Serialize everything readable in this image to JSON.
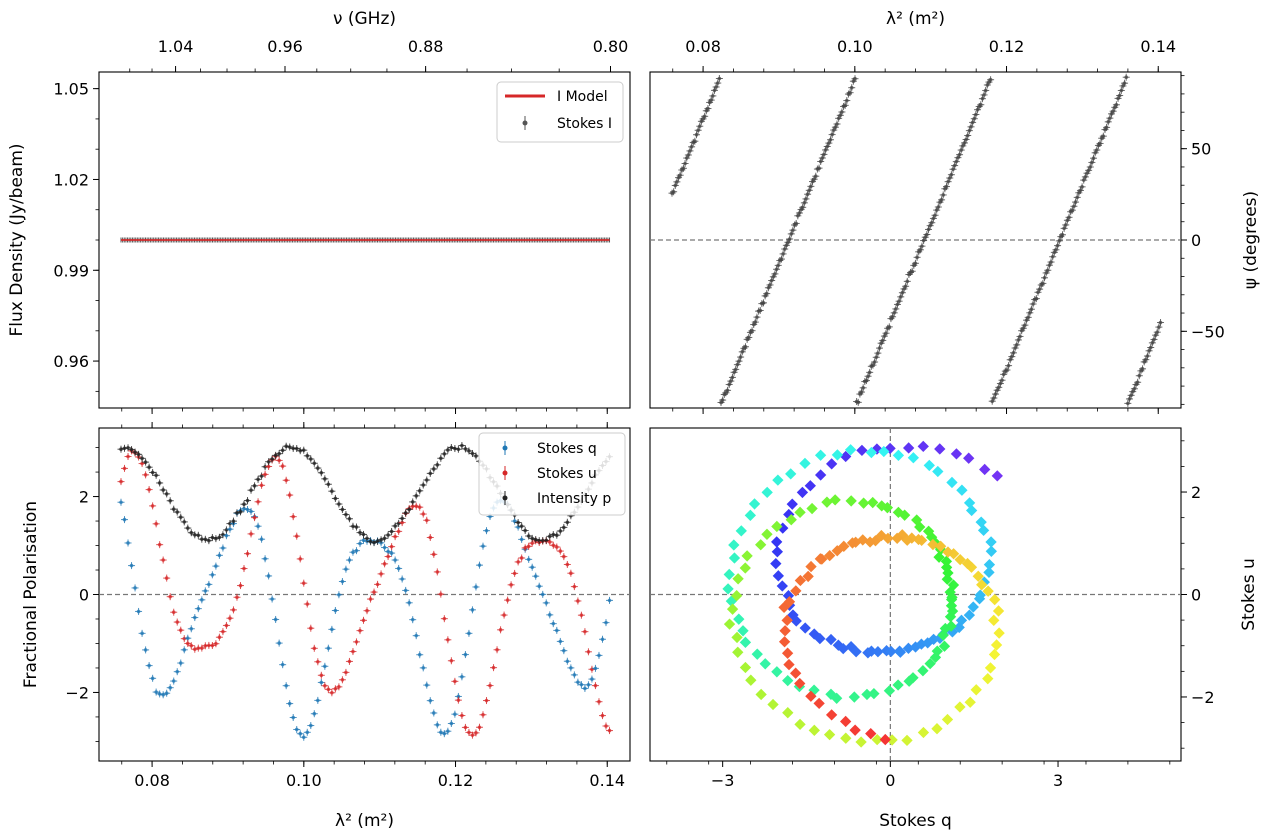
{
  "chart_data": [
    {
      "id": "stokes-i",
      "type": "scatter",
      "xlabel": "λ² (m²)",
      "ylabel": "Flux Density (Jy/beam)",
      "top_xlabel": "ν (GHz)",
      "xlim": [
        0.073,
        0.143
      ],
      "ylim": [
        0.9445,
        1.0555
      ],
      "xticks": [
        0.08,
        0.1,
        0.12,
        0.14
      ],
      "xtick_labels": [
        "0.08",
        "0.10",
        "0.12",
        "0.14"
      ],
      "yticks": [
        0.96,
        0.99,
        1.02,
        1.05
      ],
      "ytick_labels": [
        "0.96",
        "0.99",
        "1.02",
        "1.05"
      ],
      "top_ticks_ghz": [
        0.8,
        0.88,
        0.96,
        1.04
      ],
      "top_tick_labels": [
        "0.80",
        "0.88",
        "0.96",
        "1.04"
      ],
      "legend": [
        "I Model",
        "Stokes I"
      ],
      "legend_loc": "upper right",
      "series": [
        {
          "name": "Stokes I",
          "x_range": [
            0.0759,
            0.1403
          ],
          "y_const": 1.0,
          "n_points": 300,
          "color": "#555555"
        },
        {
          "name": "I Model",
          "x_range": [
            0.0759,
            0.1403
          ],
          "y_const": 1.0,
          "color": "#d62728"
        }
      ]
    },
    {
      "id": "psi",
      "type": "scatter",
      "top_xlabel": "λ² (m²)",
      "ylabel": "ψ (degrees)",
      "xlim": [
        0.073,
        0.143
      ],
      "ylim": [
        -92,
        92
      ],
      "xticks": [
        0.08,
        0.1,
        0.12,
        0.14
      ],
      "xtick_labels": [
        "0.08",
        "0.10",
        "0.12",
        "0.14"
      ],
      "yticks": [
        -50,
        0,
        50
      ],
      "ytick_labels": [
        "−50",
        "0",
        "50"
      ],
      "hline": 0,
      "rm_rad_m2": 175.9,
      "psi0_deg": -1100,
      "x_range": [
        0.0759,
        0.1403
      ],
      "n_points": 300,
      "color": "#555555"
    },
    {
      "id": "fractional",
      "type": "scatter",
      "xlabel": "λ² (m²)",
      "ylabel": "Fractional Polarisation",
      "xlim": [
        0.073,
        0.143
      ],
      "ylim": [
        -3.4,
        3.4
      ],
      "xticks": [
        0.08,
        0.1,
        0.12,
        0.14
      ],
      "xtick_labels": [
        "0.08",
        "0.10",
        "0.12",
        "0.14"
      ],
      "yticks": [
        -2,
        0,
        2
      ],
      "ytick_labels": [
        "−2",
        "0",
        "2"
      ],
      "hline": 0,
      "legend": [
        "Stokes q",
        "Stokes u",
        "Intensity p"
      ],
      "legend_loc": "upper right",
      "model": {
        "p_mean": 2.05,
        "p_amp": 0.95,
        "p_period": 0.0221,
        "p_phase_x": 0.0763,
        "rm_rad_m2": 175.9,
        "psi0_deg": -1100
      },
      "x_range": [
        0.0759,
        0.1403
      ],
      "n_points": 140,
      "series": [
        {
          "name": "Stokes q",
          "color": "#1f77b4"
        },
        {
          "name": "Stokes u",
          "color": "#d62728"
        },
        {
          "name": "Intensity p",
          "color": "#222222"
        }
      ]
    },
    {
      "id": "qu-plane",
      "type": "scatter",
      "xlabel": "Stokes q",
      "ylabel": "Stokes u",
      "xlim": [
        -4.3,
        5.2
      ],
      "ylim": [
        -3.25,
        3.25
      ],
      "xticks": [
        -3,
        0,
        3
      ],
      "xtick_labels": [
        "−3",
        "0",
        "3"
      ],
      "yticks": [
        -2,
        0,
        2
      ],
      "ytick_labels": [
        "−2",
        "0",
        "2"
      ],
      "hline": 0,
      "vline": 0,
      "color_by": "λ²",
      "colormap": "rainbow",
      "n_points": 230
    }
  ]
}
